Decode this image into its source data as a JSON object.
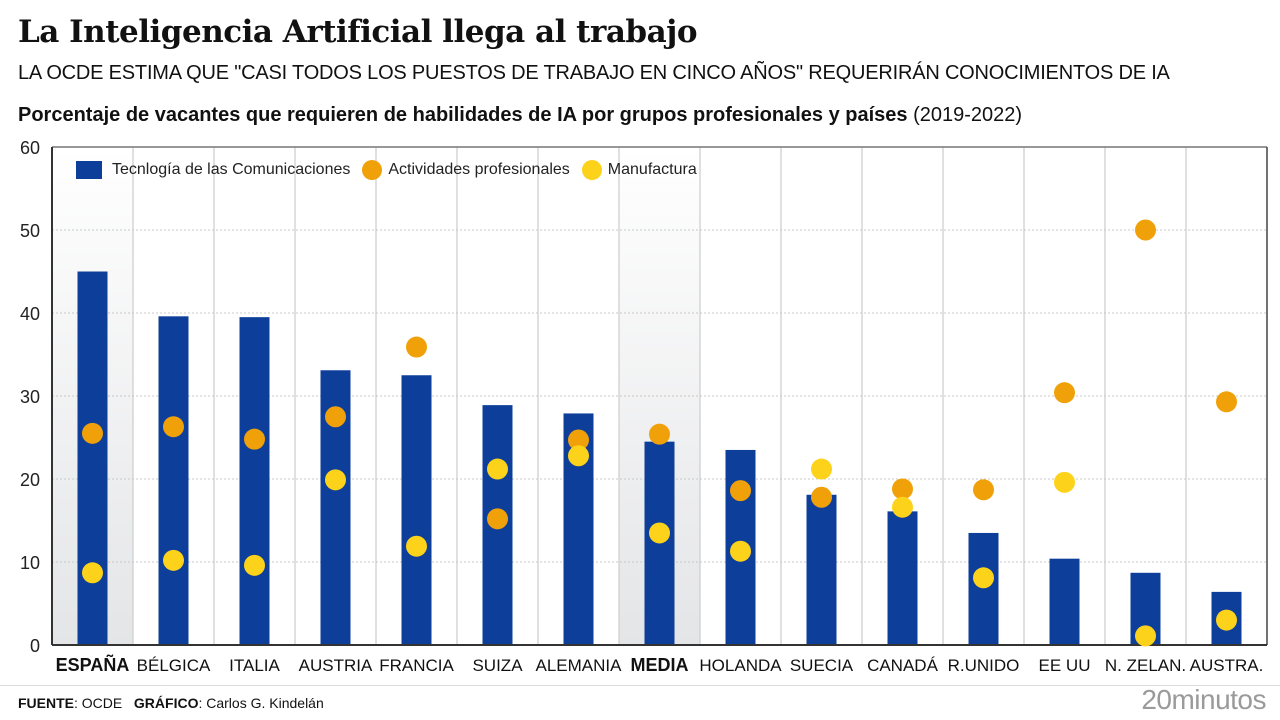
{
  "header": {
    "title": "La Inteligencia Artificial llega al trabajo",
    "subtitle": "LA OCDE ESTIMA QUE \"CASI TODOS LOS PUESTOS DE TRABAJO EN CINCO AÑOS\" REQUERIRÁN CONOCIMIENTOS DE IA",
    "chart_heading_bold": "Porcentaje de vacantes que requieren de habilidades de IA por grupos profesionales y países",
    "chart_heading_period": "(2019-2022)"
  },
  "footer": {
    "source_label": "FUENTE",
    "source_value": ": OCDE",
    "graphic_label": "GRÁFICO",
    "graphic_value": ": Carlos G. Kindelán",
    "brand": "20minutos"
  },
  "colors": {
    "bar": "#0d3f9a",
    "orange": "#f0a10a",
    "yellow": "#fdd21a",
    "highlight_bg": "#e4e5e7"
  },
  "chart_data": {
    "type": "bar",
    "title": "Porcentaje de vacantes que requieren de habilidades de IA por grupos profesionales y países (2019-2022)",
    "xlabel": "",
    "ylabel": "",
    "ylim": [
      0,
      60
    ],
    "yticks": [
      0,
      10,
      20,
      30,
      40,
      50,
      60
    ],
    "grid": true,
    "legend_position": "top-left",
    "categories": [
      "ESPAÑA",
      "BÉLGICA",
      "ITALIA",
      "AUSTRIA",
      "FRANCIA",
      "SUIZA",
      "ALEMANIA",
      "MEDIA",
      "HOLANDA",
      "SUECIA",
      "CANADÁ",
      "R.UNIDO",
      "EE UU",
      "N. ZELAN.",
      "AUSTRA."
    ],
    "highlighted": [
      "ESPAÑA",
      "MEDIA"
    ],
    "series": [
      {
        "name": "Tecnlogía de las Comunicaciones",
        "kind": "bar",
        "color": "#0d3f9a",
        "values": [
          45.0,
          39.6,
          39.5,
          33.1,
          32.5,
          28.9,
          27.9,
          24.5,
          23.5,
          18.1,
          16.1,
          13.5,
          10.4,
          8.7,
          6.4
        ]
      },
      {
        "name": "Actividades profesionales",
        "kind": "dot",
        "color": "#f0a10a",
        "values": [
          25.5,
          26.3,
          24.8,
          27.5,
          35.9,
          15.2,
          24.7,
          25.4,
          18.6,
          17.8,
          18.8,
          18.7,
          30.4,
          50.0,
          29.3
        ]
      },
      {
        "name": "Manufactura",
        "kind": "dot",
        "color": "#fdd21a",
        "values": [
          8.7,
          10.2,
          9.6,
          19.9,
          11.9,
          21.2,
          22.8,
          13.5,
          11.3,
          21.2,
          16.6,
          8.1,
          19.6,
          1.1,
          3.0
        ]
      }
    ]
  }
}
